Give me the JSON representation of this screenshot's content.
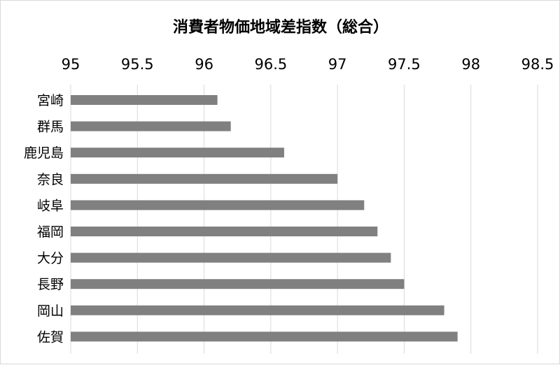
{
  "chart_data": {
    "type": "bar",
    "orientation": "horizontal",
    "title": "消費者物価地域差指数（総合）",
    "xlabel": "",
    "ylabel": "",
    "xlim": [
      95,
      98.5
    ],
    "ticks": [
      "95",
      "95.5",
      "96",
      "96.5",
      "97",
      "97.5",
      "98",
      "98.5"
    ],
    "tick_values": [
      95,
      95.5,
      96,
      96.5,
      97,
      97.5,
      98,
      98.5
    ],
    "axis_position": "top",
    "grid": true,
    "legend": "none",
    "categories": [
      "宮崎",
      "群馬",
      "鹿児島",
      "奈良",
      "岐阜",
      "福岡",
      "大分",
      "長野",
      "岡山",
      "佐賀"
    ],
    "values": [
      96.1,
      96.2,
      96.6,
      97.0,
      97.2,
      97.3,
      97.4,
      97.5,
      97.8,
      97.9
    ],
    "bar_color": "#808080",
    "grid_color": "#d9d9d9"
  }
}
